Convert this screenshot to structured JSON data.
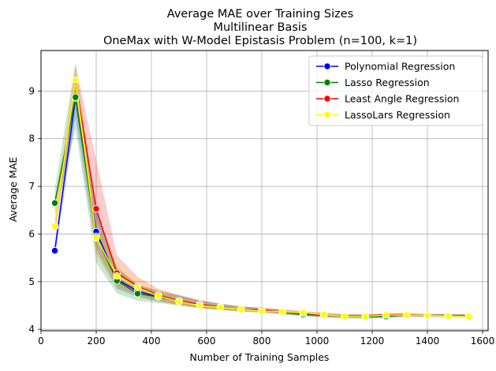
{
  "chart_data": {
    "type": "line",
    "title_lines": [
      "Average MAE over Training Sizes",
      "Multilinear Basis",
      "OneMax with W-Model Epistasis Problem (n=100, k=1)"
    ],
    "xlabel": "Number of Training Samples",
    "ylabel": "Average MAE",
    "xlim": [
      0,
      1620
    ],
    "ylim": [
      3.97,
      9.85
    ],
    "xticks": [
      0,
      200,
      400,
      600,
      800,
      1000,
      1200,
      1400,
      1600
    ],
    "yticks": [
      4,
      5,
      6,
      7,
      8,
      9
    ],
    "grid": true,
    "legend_position": "top-right",
    "x": [
      50,
      125,
      200,
      275,
      350,
      425,
      500,
      575,
      650,
      725,
      800,
      875,
      950,
      1025,
      1100,
      1175,
      1250,
      1325,
      1400,
      1475,
      1550
    ],
    "series": [
      {
        "name": "Polynomial Regression",
        "color": "#0000ff",
        "values": [
          5.65,
          8.85,
          6.05,
          5.05,
          4.8,
          4.68,
          4.6,
          4.52,
          4.47,
          4.42,
          4.4,
          4.36,
          4.32,
          4.3,
          4.27,
          4.27,
          4.28,
          4.3,
          4.29,
          4.29,
          4.28
        ],
        "band_lower": [
          5.5,
          8.45,
          5.6,
          4.85,
          4.68,
          4.58,
          4.52,
          4.45,
          4.41,
          4.38,
          4.35,
          4.32,
          4.28,
          4.26,
          4.24,
          4.24,
          4.25,
          4.27,
          4.26,
          4.26,
          4.25
        ],
        "band_upper": [
          5.8,
          9.2,
          6.5,
          5.3,
          4.95,
          4.8,
          4.7,
          4.6,
          4.53,
          4.48,
          4.45,
          4.41,
          4.37,
          4.34,
          4.31,
          4.31,
          4.32,
          4.33,
          4.32,
          4.32,
          4.31
        ]
      },
      {
        "name": "Lasso Regression",
        "color": "#008000",
        "values": [
          6.65,
          8.87,
          5.95,
          5.02,
          4.75,
          4.68,
          4.6,
          4.52,
          4.47,
          4.42,
          4.4,
          4.36,
          4.31,
          4.3,
          4.27,
          4.26,
          4.27,
          4.3,
          4.29,
          4.29,
          4.28
        ],
        "band_lower": [
          6.4,
          8.2,
          5.4,
          4.75,
          4.6,
          4.55,
          4.5,
          4.44,
          4.4,
          4.37,
          4.35,
          4.31,
          4.27,
          4.25,
          4.23,
          4.22,
          4.24,
          4.26,
          4.26,
          4.26,
          4.25
        ],
        "band_upper": [
          6.95,
          9.6,
          6.5,
          5.3,
          4.92,
          4.82,
          4.72,
          4.6,
          4.54,
          4.48,
          4.45,
          4.41,
          4.36,
          4.34,
          4.31,
          4.3,
          4.31,
          4.33,
          4.32,
          4.32,
          4.31
        ]
      },
      {
        "name": "Least Angle Regression",
        "color": "#ff0000",
        "values": [
          6.15,
          9.2,
          6.53,
          5.18,
          4.9,
          4.72,
          4.6,
          4.52,
          4.47,
          4.42,
          4.4,
          4.37,
          4.34,
          4.3,
          4.28,
          4.28,
          4.31,
          4.31,
          4.29,
          4.29,
          4.28
        ],
        "band_lower": [
          6.0,
          8.85,
          5.7,
          4.9,
          4.72,
          4.6,
          4.5,
          4.45,
          4.41,
          4.38,
          4.36,
          4.33,
          4.3,
          4.26,
          4.25,
          4.25,
          4.27,
          4.28,
          4.26,
          4.26,
          4.25
        ],
        "band_upper": [
          6.3,
          9.55,
          7.55,
          5.55,
          5.1,
          4.85,
          4.72,
          4.62,
          4.54,
          4.48,
          4.45,
          4.42,
          4.38,
          4.35,
          4.32,
          4.32,
          4.34,
          4.34,
          4.32,
          4.32,
          4.31
        ]
      },
      {
        "name": "LassoLars Regression",
        "color": "#ffff00",
        "values": [
          6.17,
          9.23,
          5.92,
          5.12,
          4.88,
          4.7,
          4.58,
          4.5,
          4.46,
          4.42,
          4.38,
          4.37,
          4.35,
          4.31,
          4.27,
          4.27,
          4.3,
          4.3,
          4.29,
          4.28,
          4.27
        ],
        "band_lower": [
          6.0,
          8.9,
          5.55,
          4.9,
          4.72,
          4.6,
          4.5,
          4.44,
          4.41,
          4.38,
          4.34,
          4.33,
          4.31,
          4.27,
          4.24,
          4.24,
          4.27,
          4.27,
          4.26,
          4.25,
          4.24
        ],
        "band_upper": [
          6.35,
          9.5,
          6.3,
          5.4,
          5.05,
          4.82,
          4.68,
          4.58,
          4.52,
          4.47,
          4.43,
          4.41,
          4.39,
          4.35,
          4.31,
          4.31,
          4.33,
          4.33,
          4.32,
          4.31,
          4.3
        ]
      }
    ]
  }
}
